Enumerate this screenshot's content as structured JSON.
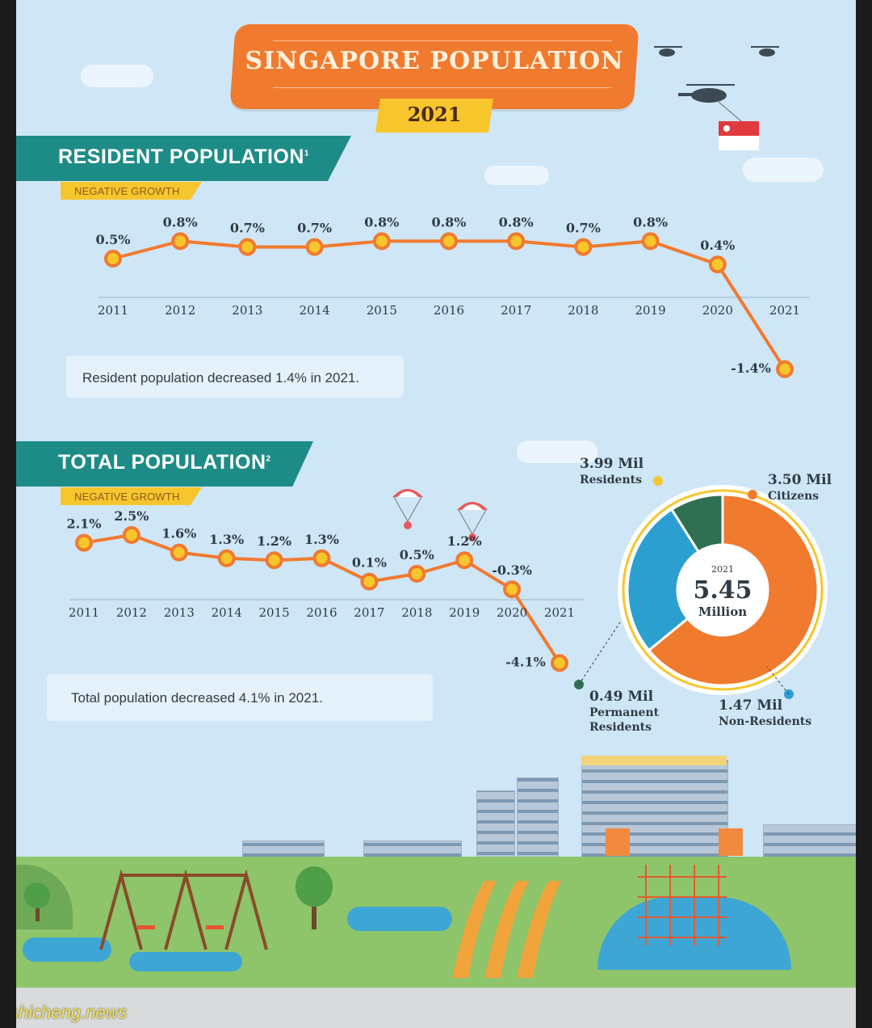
{
  "header": {
    "title": "SINGAPORE POPULATION",
    "year": "2021"
  },
  "resident": {
    "section_title": "RESIDENT POPULATION",
    "footnote": "1",
    "tag": "NEGATIVE GROWTH",
    "note": "Resident population decreased 1.4% in 2021."
  },
  "total": {
    "section_title": "TOTAL POPULATION",
    "footnote": "2",
    "tag": "NEGATIVE GROWTH",
    "note": "Total population decreased 4.1% in 2021."
  },
  "colors": {
    "orange": "#f07a2e",
    "yellow": "#f7c62d",
    "teal": "#1e8c86",
    "blue": "#2b9fd0",
    "dark_green": "#2f6f52",
    "sky": "#cfe6f6"
  },
  "watermark": "shicheng.news",
  "chart_data": [
    {
      "type": "line",
      "title": "RESIDENT POPULATION",
      "x": [
        "2011",
        "2012",
        "2013",
        "2014",
        "2015",
        "2016",
        "2017",
        "2018",
        "2019",
        "2020",
        "2021"
      ],
      "series": [
        {
          "values": [
            0.5,
            0.8,
            0.7,
            0.7,
            0.8,
            0.8,
            0.8,
            0.7,
            0.8,
            0.4,
            -1.4
          ]
        }
      ],
      "labels": [
        "0.5%",
        "0.8%",
        "0.7%",
        "0.7%",
        "0.8%",
        "0.8%",
        "0.8%",
        "0.7%",
        "0.8%",
        "0.4%",
        "-1.4%"
      ],
      "unit": "%",
      "grid": false
    },
    {
      "type": "line",
      "title": "TOTAL POPULATION",
      "x": [
        "2011",
        "2012",
        "2013",
        "2014",
        "2015",
        "2016",
        "2017",
        "2018",
        "2019",
        "2020",
        "2021"
      ],
      "series": [
        {
          "values": [
            2.1,
            2.5,
            1.6,
            1.3,
            1.2,
            1.3,
            0.1,
            0.5,
            1.2,
            -0.3,
            -4.1
          ]
        }
      ],
      "labels": [
        "2.1%",
        "2.5%",
        "1.6%",
        "1.3%",
        "1.2%",
        "1.3%",
        "0.1%",
        "0.5%",
        "1.2%",
        "-0.3%",
        "-4.1%"
      ],
      "unit": "%",
      "grid": false
    },
    {
      "type": "pie",
      "variant": "donut",
      "center": {
        "year": "2021",
        "value": "5.45",
        "unit": "Million"
      },
      "slices": [
        {
          "name": "Citizens",
          "value": 3.5,
          "label": "3.50 Mil",
          "color": "#f07a2e"
        },
        {
          "name": "Non-Residents",
          "value": 1.47,
          "label": "1.47 Mil",
          "color": "#2b9fd0"
        },
        {
          "name": "Permanent Residents",
          "value": 0.49,
          "label": "0.49 Mil",
          "color": "#2f6f52"
        }
      ],
      "annotations": [
        {
          "label": "3.99 Mil",
          "name": "Residents",
          "color": "#f7c62d"
        }
      ]
    }
  ]
}
